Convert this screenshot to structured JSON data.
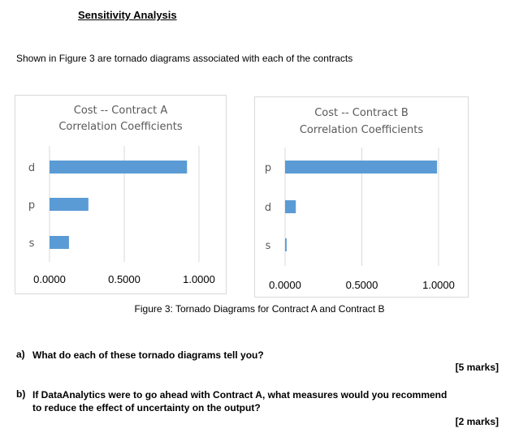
{
  "heading": "Sensitivity Analysis",
  "intro": "Shown in Figure 3 are tornado diagrams associated with each of the contracts",
  "chart_data": [
    {
      "type": "bar",
      "orientation": "horizontal",
      "title": [
        "Cost -- Contract A",
        "Correlation Coefficients"
      ],
      "categories": [
        "d",
        "p",
        "s"
      ],
      "values": [
        0.92,
        0.26,
        0.13
      ],
      "xlim": [
        0,
        1.0
      ],
      "xticks": [
        "0.0000",
        "0.5000",
        "1.0000"
      ],
      "grid": true,
      "bar_color": "#5b9bd5"
    },
    {
      "type": "bar",
      "orientation": "horizontal",
      "title": [
        "Cost -- Contract B",
        "Correlation Coefficients"
      ],
      "categories": [
        "p",
        "d",
        "s"
      ],
      "values": [
        0.99,
        0.07,
        0.01
      ],
      "xlim": [
        0,
        1.0
      ],
      "xticks": [
        "0.0000",
        "0.5000",
        "1.0000"
      ],
      "grid": true,
      "bar_color": "#5b9bd5"
    }
  ],
  "caption": "Figure 3: Tornado Diagrams for Contract A and Contract B",
  "questions": [
    {
      "label": "a)",
      "lines": [
        "What do each of these tornado diagrams tell you?"
      ],
      "marks": "[5 marks]"
    },
    {
      "label": "b)",
      "lines": [
        "If DataAnalytics were to go ahead with Contract A, what measures would you recommend",
        "to reduce the effect of uncertainty on the output?"
      ],
      "marks": "[2 marks]"
    }
  ]
}
